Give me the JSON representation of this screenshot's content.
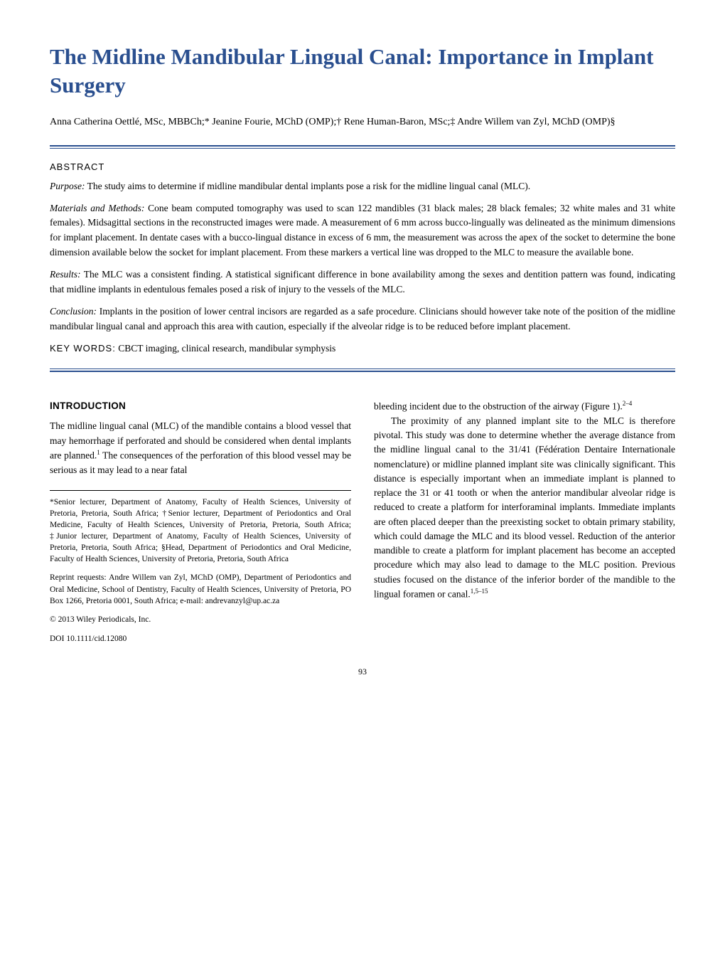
{
  "title": "The Midline Mandibular Lingual Canal: Importance in Implant Surgery",
  "authors": "Anna Catherina Oettlé, MSc, MBBCh;* Jeanine Fourie, MChD (OMP);† Rene Human-Baron, MSc;‡ Andre Willem van Zyl, MChD (OMP)§",
  "abstract": {
    "label": "ABSTRACT",
    "purpose": {
      "label": "Purpose:",
      "text": " The study aims to determine if midline mandibular dental implants pose a risk for the midline lingual canal (MLC)."
    },
    "methods": {
      "label": "Materials and Methods:",
      "text": " Cone beam computed tomography was used to scan 122 mandibles (31 black males; 28 black females; 32 white males and 31 white females). Midsagittal sections in the reconstructed images were made. A measurement of 6 mm across bucco-lingually was delineated as the minimum dimensions for implant placement. In dentate cases with a bucco-lingual distance in excess of 6 mm, the measurement was across the apex of the socket to determine the bone dimension available below the socket for implant placement. From these markers a vertical line was dropped to the MLC to measure the available bone."
    },
    "results": {
      "label": "Results:",
      "text": " The MLC was a consistent finding. A statistical significant difference in bone availability among the sexes and dentition pattern was found, indicating that midline implants in edentulous females posed a risk of injury to the vessels of the MLC."
    },
    "conclusion": {
      "label": "Conclusion:",
      "text": " Implants in the position of lower central incisors are regarded as a safe procedure. Clinicians should however take note of the position of the midline mandibular lingual canal and approach this area with caution, especially if the alveolar ridge is to be reduced before implant placement."
    },
    "keywords": {
      "label": "KEY WORDS:",
      "text": " CBCT imaging, clinical research, mandibular symphysis"
    }
  },
  "introduction": {
    "heading": "INTRODUCTION",
    "para1_part1": "The midline lingual canal (MLC) of the mandible contains a blood vessel that may hemorrhage if perforated and should be considered when dental implants are planned.",
    "para1_sup1": "1",
    "para1_part2": " The consequences of the perforation of this blood vessel may be serious as it may lead to a near fatal",
    "para1_cont": "bleeding incident due to the obstruction of the airway (Figure 1).",
    "para1_sup2": "2–4",
    "para2_part1": "The proximity of any planned implant site to the MLC is therefore pivotal. This study was done to determine whether the average distance from the midline lingual canal to the 31/41 (Fédération Dentaire Internationale nomenclature) or midline planned implant site was clinically significant. This distance is especially important when an immediate implant is planned to replace the 31 or 41 tooth or when the anterior mandibular alveolar ridge is reduced to create a platform for interforaminal implants. Immediate implants are often placed deeper than the preexisting socket to obtain primary stability, which could damage the MLC and its blood vessel. Reduction of the anterior mandible to create a platform for implant placement has become an accepted procedure which may also lead to damage to the MLC position. Previous studies focused on the distance of the inferior border of the mandible to the lingual foramen or canal.",
    "para2_sup": "1,5–15"
  },
  "footnotes": {
    "affiliations": "*Senior lecturer, Department of Anatomy, Faculty of Health Sciences, University of Pretoria, Pretoria, South Africa; †Senior lecturer, Department of Periodontics and Oral Medicine, Faculty of Health Sciences, University of Pretoria, Pretoria, South Africa; ‡Junior lecturer, Department of Anatomy, Faculty of Health Sciences, University of Pretoria, Pretoria, South Africa; §Head, Department of Periodontics and Oral Medicine, Faculty of Health Sciences, University of Pretoria, Pretoria, South Africa",
    "reprint": "Reprint requests: Andre Willem van Zyl, MChD (OMP), Department of Periodontics and Oral Medicine, School of Dentistry, Faculty of Health Sciences, University of Pretoria, PO Box 1266, Pretoria 0001, South Africa; e-mail: andrevanzyl@up.ac.za",
    "copyright": "© 2013 Wiley Periodicals, Inc.",
    "doi": "DOI 10.1111/cid.12080"
  },
  "page_number": "93",
  "colors": {
    "title_color": "#2a4f8f",
    "rule_color": "#2a4f8f",
    "text_color": "#000000",
    "background": "#ffffff"
  }
}
